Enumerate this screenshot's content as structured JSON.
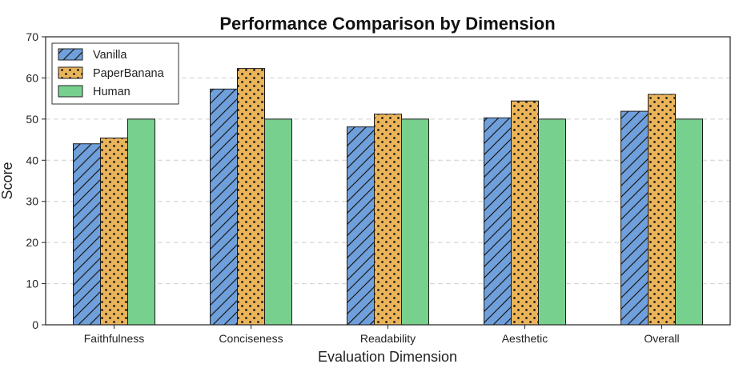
{
  "chart_data": {
    "type": "bar",
    "title": "Performance Comparison by Dimension",
    "xlabel": "Evaluation Dimension",
    "ylabel": "Score",
    "ylim": [
      0,
      70
    ],
    "yticks": [
      0,
      10,
      20,
      30,
      40,
      50,
      60,
      70
    ],
    "categories": [
      "Faithfulness",
      "Conciseness",
      "Readability",
      "Aesthetic",
      "Overall"
    ],
    "grid": "horizontal dashed",
    "legend_position": "top-left",
    "series": [
      {
        "name": "Vanilla",
        "values": [
          44.0,
          57.3,
          48.1,
          50.3,
          51.9
        ],
        "color": "#6fa0dc",
        "pattern": "diagonal-hatch"
      },
      {
        "name": "PaperBanana",
        "values": [
          45.4,
          62.3,
          51.2,
          54.4,
          56.0
        ],
        "color": "#eab45a",
        "pattern": "dots"
      },
      {
        "name": "Human",
        "values": [
          50,
          50,
          50,
          50,
          50
        ],
        "color": "#77d08e",
        "pattern": "solid"
      }
    ]
  }
}
